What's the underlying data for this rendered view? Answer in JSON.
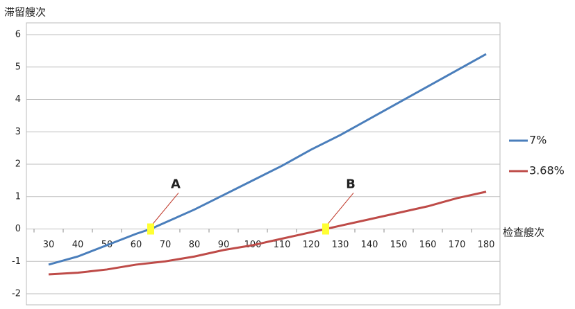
{
  "chart_data": {
    "type": "line",
    "y_axis_label": "滞留艘次",
    "x_axis_label": "检查艘次",
    "xlim": [
      30,
      180
    ],
    "ylim": [
      -2,
      6
    ],
    "xticks": [
      30,
      40,
      50,
      60,
      70,
      80,
      90,
      100,
      110,
      120,
      130,
      140,
      150,
      160,
      170,
      180
    ],
    "yticks": [
      -2,
      -1,
      0,
      1,
      2,
      3,
      4,
      5,
      6
    ],
    "grid": true,
    "legend": "right",
    "series": [
      {
        "name": "7%",
        "color": "#4a7ebb",
        "x": [
          30,
          40,
          50,
          60,
          65,
          70,
          80,
          90,
          100,
          110,
          120,
          130,
          140,
          150,
          160,
          170,
          180
        ],
        "values": [
          -1.1,
          -0.85,
          -0.5,
          -0.15,
          0,
          0.2,
          0.6,
          1.05,
          1.5,
          1.95,
          2.45,
          2.9,
          3.4,
          3.9,
          4.4,
          4.9,
          5.4
        ]
      },
      {
        "name": "3.68%",
        "color": "#be4b48",
        "x": [
          30,
          40,
          50,
          60,
          70,
          80,
          90,
          100,
          110,
          120,
          125,
          130,
          140,
          150,
          160,
          170,
          180
        ],
        "values": [
          -1.4,
          -1.35,
          -1.25,
          -1.1,
          -1.0,
          -0.85,
          -0.65,
          -0.5,
          -0.3,
          -0.1,
          0,
          0.1,
          0.3,
          0.5,
          0.7,
          0.95,
          1.15
        ]
      }
    ],
    "annotations": [
      {
        "text": "A",
        "x": 65,
        "y": 0,
        "color": "#1f4e9a"
      },
      {
        "text": "B",
        "x": 125,
        "y": 0,
        "color": "#a0282a"
      }
    ]
  }
}
